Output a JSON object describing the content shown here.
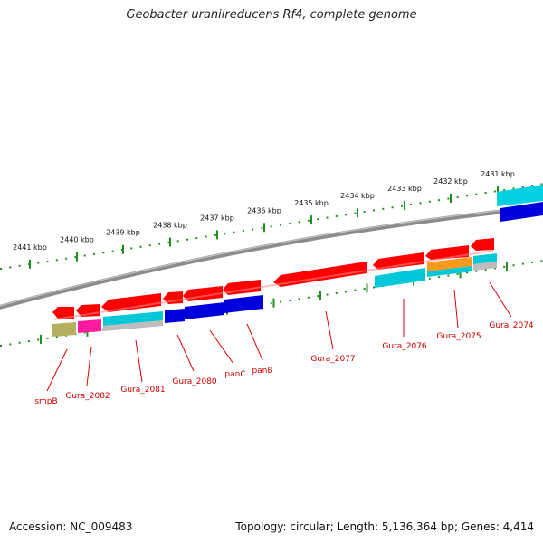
{
  "title": "Geobacter uraniireducens Rf4, complete genome",
  "footer": {
    "accession": "Accession: NC_009483",
    "topology": "Topology: circular; Length: 5,136,364 bp; Genes: 4,414"
  },
  "scale": {
    "unit": "kbp",
    "ticks": [
      "2441 kbp",
      "2440 kbp",
      "2439 kbp",
      "2438 kbp",
      "2437 kbp",
      "2436 kbp",
      "2435 kbp",
      "2434 kbp",
      "2433 kbp",
      "2432 kbp",
      "2431 kbp"
    ]
  },
  "colors": {
    "gene_forward": "#ff0000",
    "backbone": "#8c8c8c",
    "scale_ticks": "#228b22",
    "label_line": "#e00000",
    "label_text": "#cc0000",
    "feature_blue": "#0000dd",
    "feature_cyan": "#00c8d8",
    "feature_magenta": "#ff1aa0",
    "feature_olive": "#b5b060",
    "feature_orange": "#ff9a1a",
    "feature_gray": "#bdbdbd"
  },
  "genes": [
    {
      "name": "smpB"
    },
    {
      "name": "Gura_2082"
    },
    {
      "name": "Gura_2081"
    },
    {
      "name": "Gura_2080"
    },
    {
      "name": "panC"
    },
    {
      "name": "panB"
    },
    {
      "name": "Gura_2077"
    },
    {
      "name": "Gura_2076"
    },
    {
      "name": "Gura_2075"
    },
    {
      "name": "Gura_2074"
    }
  ],
  "feature_tracks": [
    {
      "segments": [
        {
          "color": "olive"
        },
        {
          "color": "magenta"
        },
        {
          "color": "cyan"
        },
        {
          "color": "blue"
        },
        {
          "color": "blue"
        },
        {
          "color": "blue"
        },
        {
          "color": "cyan"
        },
        {
          "color": "cyan"
        },
        {
          "color": "orange"
        },
        {
          "color": "cyan"
        },
        {
          "color": "gray"
        }
      ]
    }
  ]
}
